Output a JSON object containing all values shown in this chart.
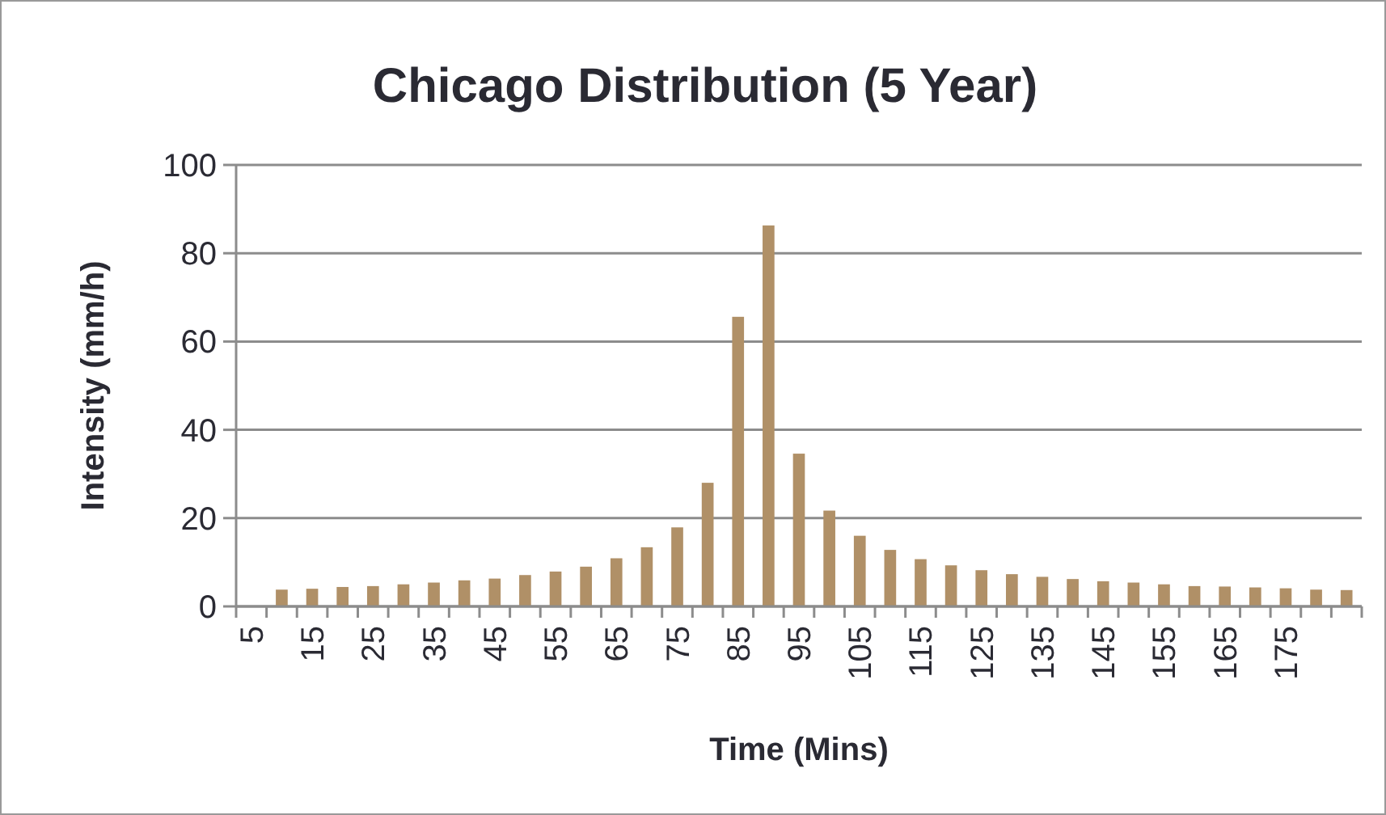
{
  "chart_data": {
    "type": "bar",
    "title": "Chicago Distribution (5 Year)",
    "xlabel": "Time (Mins)",
    "ylabel": "Intensity (mm/h)",
    "categories": [
      "5",
      null,
      "15",
      null,
      "25",
      null,
      "35",
      null,
      "45",
      null,
      "55",
      null,
      "65",
      null,
      "75",
      null,
      "85",
      null,
      "95",
      null,
      "105",
      null,
      "115",
      null,
      "125",
      null,
      "135",
      null,
      "145",
      null,
      "155",
      null,
      "165",
      null,
      "175",
      null,
      null
    ],
    "values": [
      null,
      3.8,
      4.0,
      4.4,
      4.6,
      5.0,
      5.4,
      5.9,
      6.3,
      7.1,
      7.9,
      9.0,
      10.9,
      13.4,
      17.9,
      28.0,
      65.6,
      86.3,
      34.6,
      21.7,
      16.0,
      12.8,
      10.7,
      9.3,
      8.2,
      7.3,
      6.7,
      6.2,
      5.7,
      5.4,
      5.0,
      4.6,
      4.5,
      4.3,
      4.1,
      3.8,
      3.7
    ],
    "color": "#b09067",
    "ylim": [
      0,
      100
    ],
    "yticks": [
      0,
      20,
      40,
      60,
      80,
      100
    ],
    "grid": "y"
  }
}
